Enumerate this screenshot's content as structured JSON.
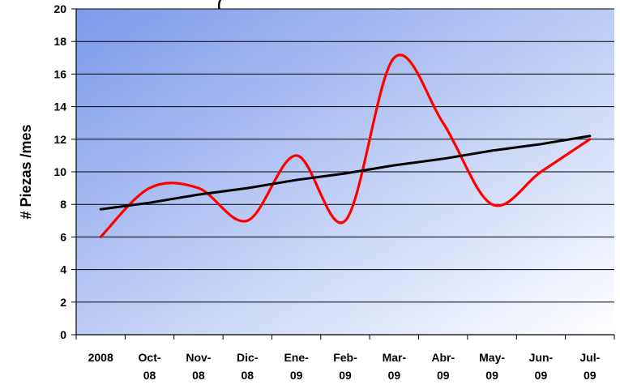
{
  "chart_data": {
    "type": "line",
    "title": "(",
    "ylabel": "# Piezas /mes",
    "xlabel": "",
    "categories": [
      [
        "2008"
      ],
      [
        "Oct-",
        "08"
      ],
      [
        "Nov-",
        "08"
      ],
      [
        "Dic-",
        "08"
      ],
      [
        "Ene-",
        "09"
      ],
      [
        "Feb-",
        "09"
      ],
      [
        "Mar-",
        "09"
      ],
      [
        "Abr-",
        "09"
      ],
      [
        "May-",
        "09"
      ],
      [
        "Jun-",
        "09"
      ],
      [
        "Jul-",
        "09"
      ]
    ],
    "ylim": [
      0,
      20
    ],
    "yticks": [
      0,
      2,
      4,
      6,
      8,
      10,
      12,
      14,
      16,
      18,
      20
    ],
    "grid": true,
    "legend": "none",
    "series": [
      {
        "values": [
          6,
          9,
          9,
          7,
          11,
          7,
          17,
          13,
          8,
          10,
          12
        ],
        "color": "#ff0000",
        "smooth": true
      },
      {
        "values": [
          7.7,
          8.1,
          8.6,
          9.0,
          9.5,
          9.9,
          10.4,
          10.8,
          11.3,
          11.7,
          12.2
        ],
        "color": "#000000",
        "trendline": true
      }
    ],
    "background": {
      "gradient_from": "#7b9aea",
      "gradient_to": "#ffffff"
    }
  }
}
